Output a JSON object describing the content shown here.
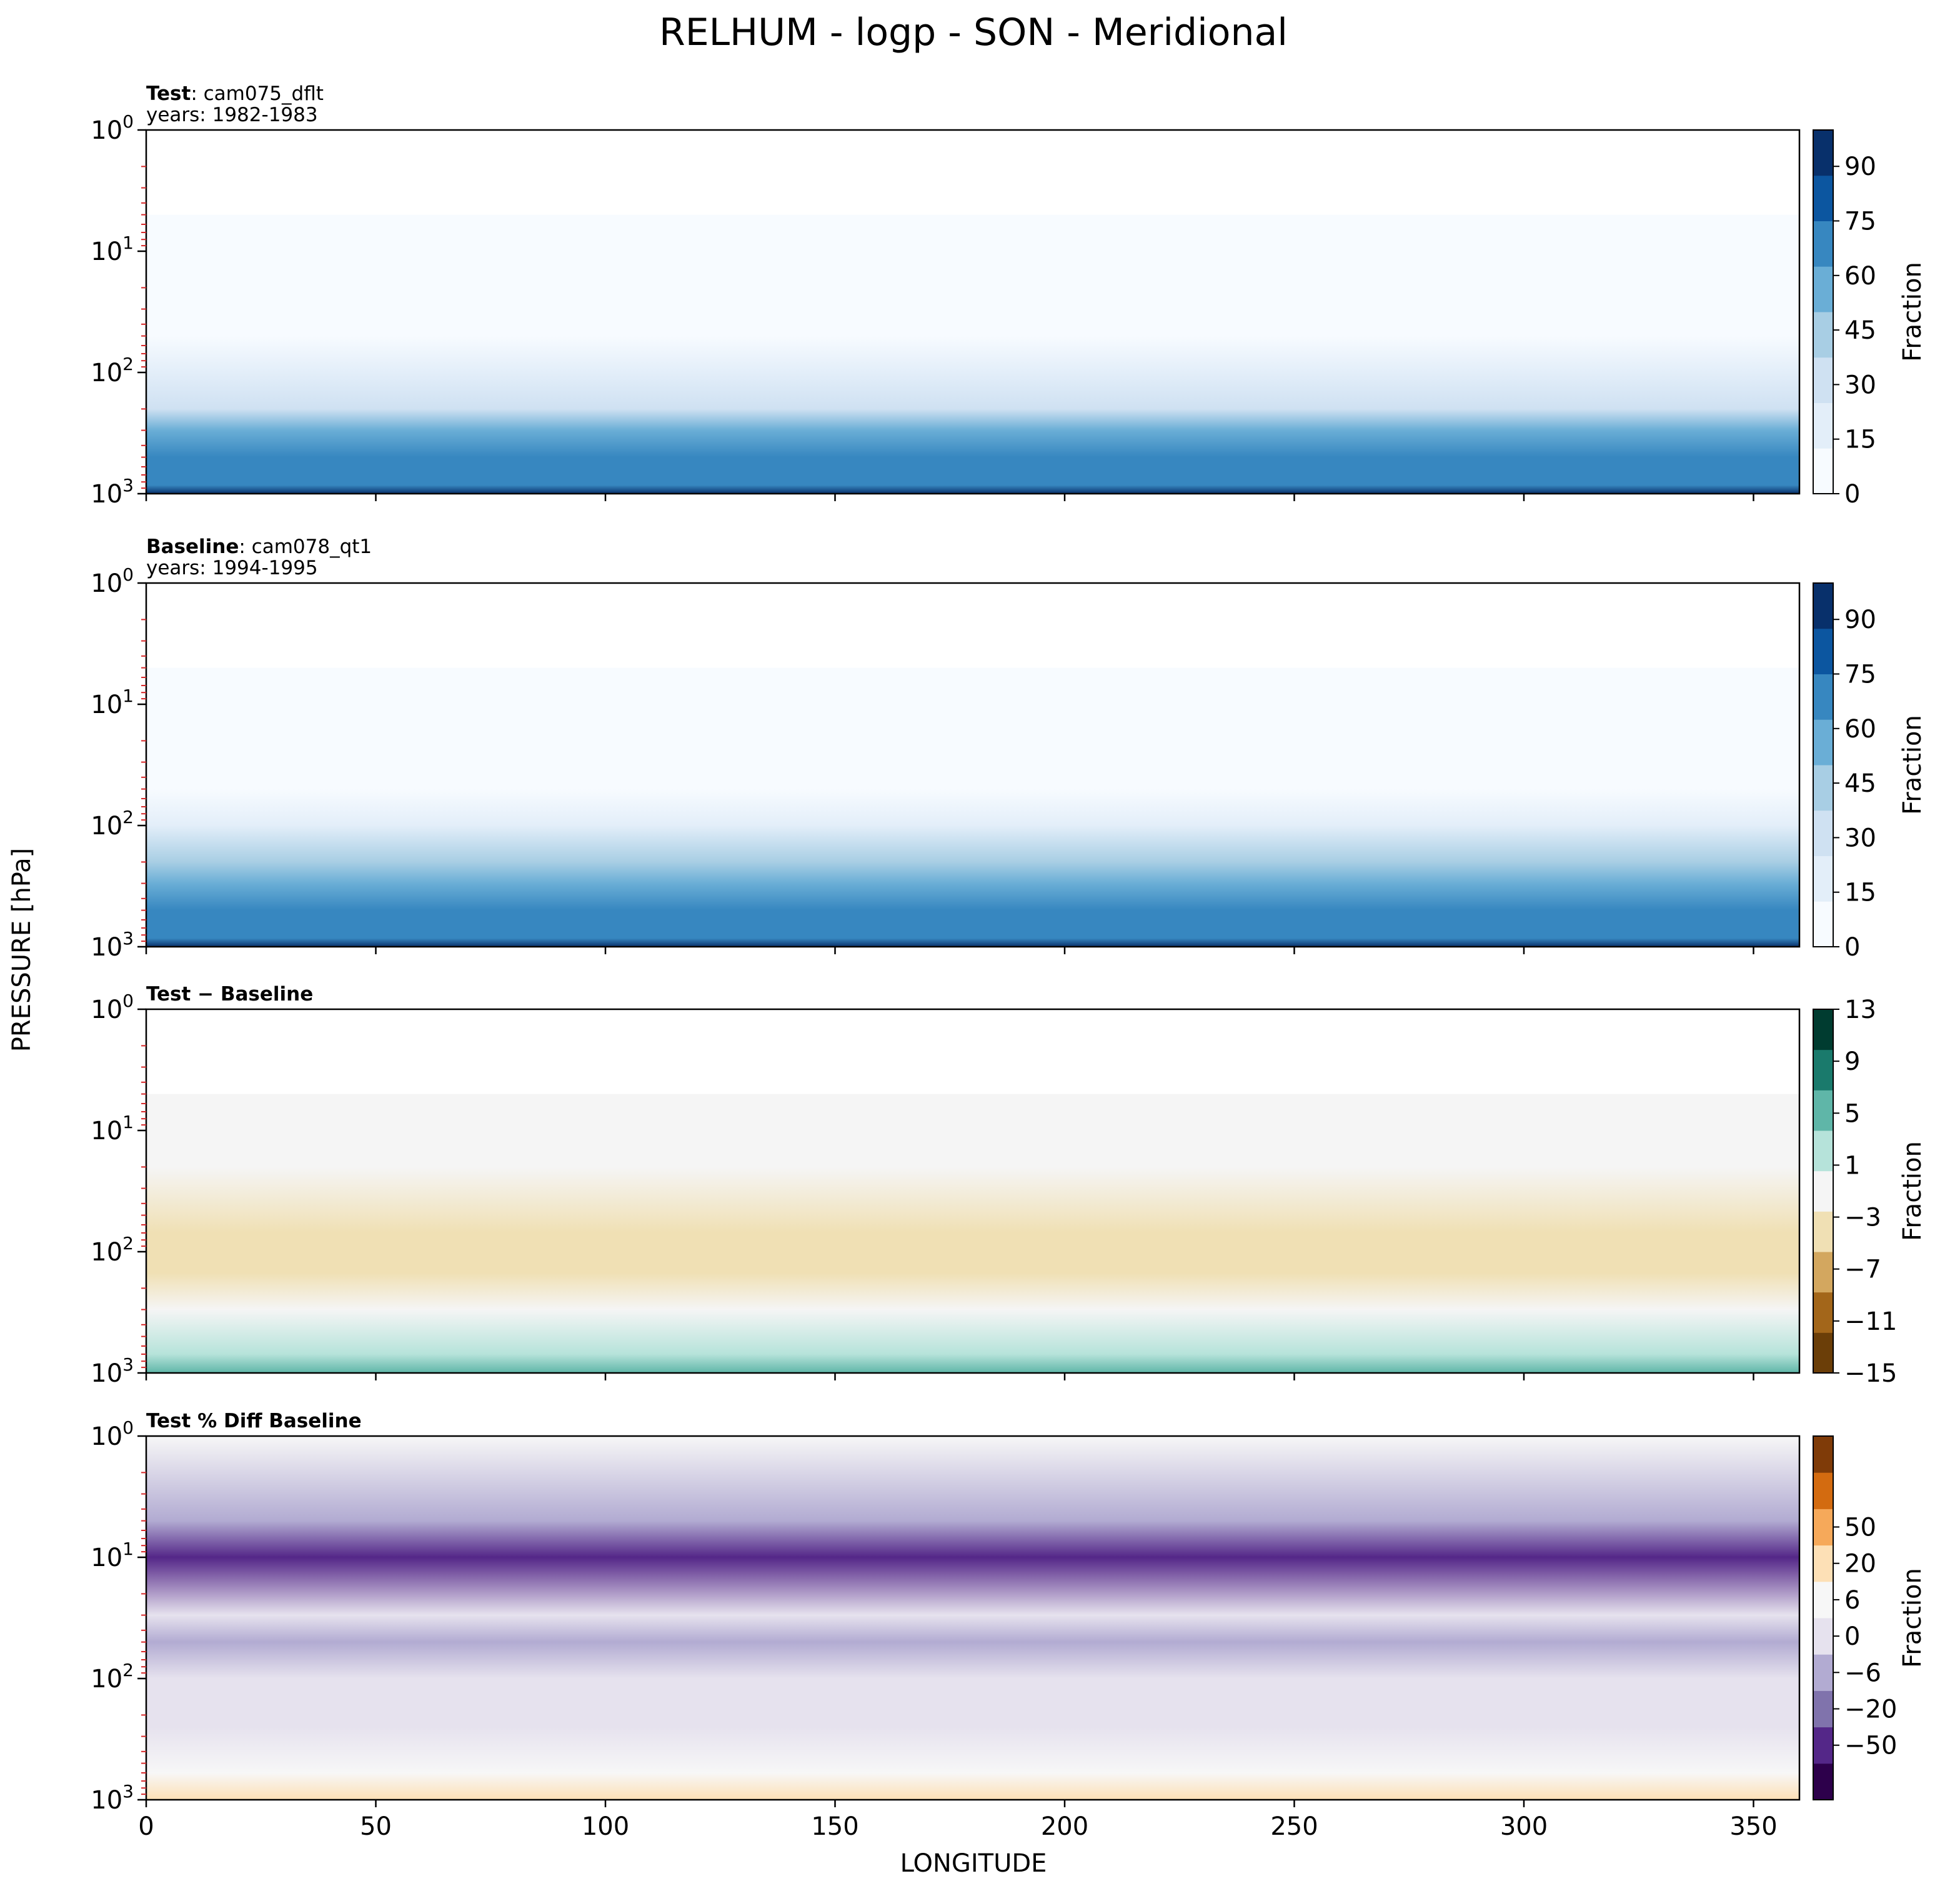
{
  "figure": {
    "title": "RELHUM - logp - SON - Meridional",
    "ylabel": "PRESSURE [hPa]",
    "xlabel": "LONGITUDE"
  },
  "panels": [
    {
      "title_bold": "Test",
      "title_rest": ": cam075_dflt",
      "title_line2": "years: 1982-1983",
      "cbar_label": "Fraction"
    },
    {
      "title_bold": "Baseline",
      "title_rest": ": cam078_qt1",
      "title_line2": "years: 1994-1995",
      "cbar_label": "Fraction"
    },
    {
      "title_bold": "Test − Baseline",
      "title_rest": "",
      "title_line2": "",
      "cbar_label": "Fraction"
    },
    {
      "title_bold": "Test % Diff Baseline",
      "title_rest": "",
      "title_line2": "",
      "cbar_label": "Fraction"
    }
  ],
  "chart_data": [
    {
      "type": "heatmap",
      "name": "Test",
      "colormap": "Blues",
      "x": [
        0,
        50,
        100,
        150,
        200,
        250,
        300,
        350
      ],
      "xlim": [
        0,
        360
      ],
      "yscale": "log",
      "ylim": [
        1000,
        1
      ],
      "yticks": [
        "10^0",
        "10^1",
        "10^2",
        "10^3"
      ],
      "clevels": [
        0,
        15,
        30,
        45,
        60,
        75,
        90
      ],
      "profile_pressure_hPa": [
        1000,
        850,
        500,
        300,
        200,
        100,
        50,
        30,
        5
      ],
      "profile_value": [
        95,
        68,
        65,
        55,
        35,
        20,
        10,
        3,
        0
      ]
    },
    {
      "type": "heatmap",
      "name": "Baseline",
      "colormap": "Blues",
      "x": [
        0,
        50,
        100,
        150,
        200,
        250,
        300,
        350
      ],
      "xlim": [
        0,
        360
      ],
      "yscale": "log",
      "ylim": [
        1000,
        1
      ],
      "yticks": [
        "10^0",
        "10^1",
        "10^2",
        "10^3"
      ],
      "clevels": [
        0,
        15,
        30,
        45,
        60,
        75,
        90
      ],
      "profile_pressure_hPa": [
        1000,
        850,
        500,
        300,
        200,
        100,
        50,
        30,
        5
      ],
      "profile_value": [
        95,
        66,
        65,
        55,
        38,
        22,
        12,
        4,
        0
      ]
    },
    {
      "type": "heatmap",
      "name": "Test − Baseline",
      "colormap": "BrBG",
      "x": [
        0,
        50,
        100,
        150,
        200,
        250,
        300,
        350
      ],
      "xlim": [
        0,
        360
      ],
      "yscale": "log",
      "ylim": [
        1000,
        1
      ],
      "yticks": [
        "10^0",
        "10^1",
        "10^2",
        "10^3"
      ],
      "clevels": [
        -15,
        -11,
        -7,
        -3,
        1,
        5,
        9,
        13
      ],
      "profile_pressure_hPa": [
        1000,
        700,
        300,
        150,
        70,
        20,
        5
      ],
      "profile_value": [
        6,
        3,
        0,
        -3,
        -5,
        -2,
        0
      ]
    },
    {
      "type": "heatmap",
      "name": "Test % Diff Baseline",
      "colormap": "PuOr_r",
      "x": [
        0,
        50,
        100,
        150,
        200,
        250,
        300,
        350
      ],
      "xlim": [
        0,
        360
      ],
      "yscale": "log",
      "ylim": [
        1000,
        1
      ],
      "yticks": [
        "10^0",
        "10^1",
        "10^2",
        "10^3"
      ],
      "clevels": [
        -50,
        -20,
        -6,
        0,
        6,
        20,
        50
      ],
      "profile_pressure_hPa": [
        1000,
        600,
        250,
        100,
        50,
        30,
        10,
        5,
        1
      ],
      "profile_value": [
        12,
        6,
        -2,
        -8,
        -20,
        -5,
        -40,
        -15,
        0
      ]
    }
  ],
  "colorbars": [
    {
      "ticks": [
        "0",
        "15",
        "30",
        "45",
        "60",
        "75",
        "90"
      ],
      "colors": [
        "#f7fbff",
        "#e3eef9",
        "#cfe1f2",
        "#a8cee4",
        "#6aaed6",
        "#3787c0",
        "#0c56a0",
        "#08306b"
      ]
    },
    {
      "ticks": [
        "0",
        "15",
        "30",
        "45",
        "60",
        "75",
        "90"
      ],
      "colors": [
        "#f7fbff",
        "#e3eef9",
        "#cfe1f2",
        "#a8cee4",
        "#6aaed6",
        "#3787c0",
        "#0c56a0",
        "#08306b"
      ]
    },
    {
      "ticks": [
        "−15",
        "−11",
        "−7",
        "−3",
        "1",
        "5",
        "9",
        "13"
      ],
      "colors": [
        "#6b3e08",
        "#a3661a",
        "#d3a75f",
        "#f0e0b4",
        "#f5f5f5",
        "#b6e3da",
        "#5fb6a8",
        "#1a7a6c",
        "#003c30"
      ]
    },
    {
      "ticks": [
        "−50",
        "−20",
        "−6",
        "0",
        "6",
        "20",
        "50"
      ],
      "colors": [
        "#2d004b",
        "#542788",
        "#8073ac",
        "#b2abd2",
        "#e6e2ee",
        "#f7f7f7",
        "#fde0b6",
        "#f6a95a",
        "#d36b10",
        "#7f3b08"
      ]
    }
  ]
}
